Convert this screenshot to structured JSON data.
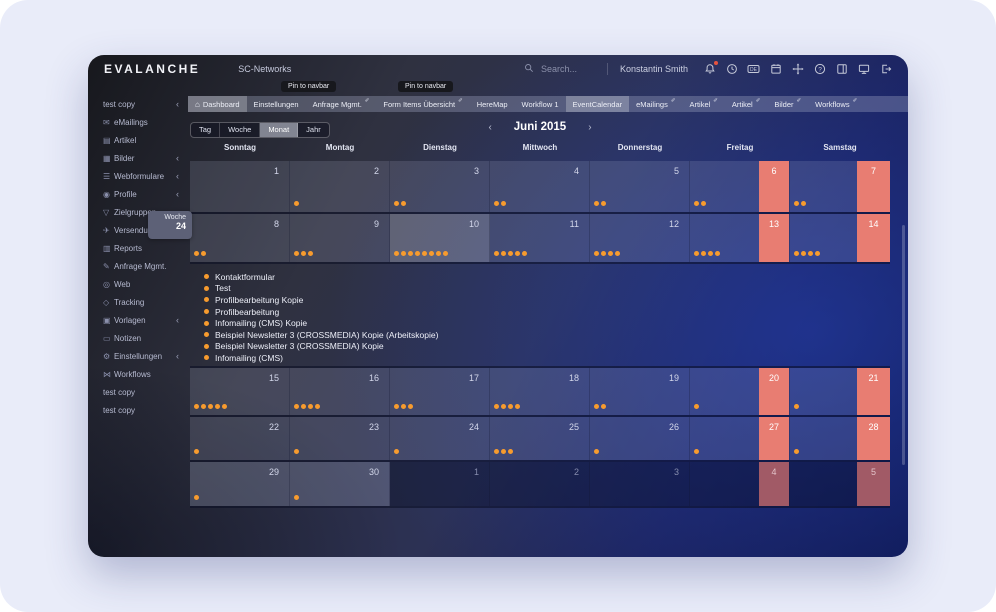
{
  "topbar": {
    "logo": "EVALANCHE",
    "organization": "SC-Networks",
    "search_placeholder": "Search...",
    "user_name": "Konstantin Smith",
    "language": "DE",
    "icons": [
      {
        "name": "bell",
        "badge": true
      },
      {
        "name": "history"
      },
      {
        "name": "language-de",
        "text": "DE"
      },
      {
        "name": "calendar"
      },
      {
        "name": "move"
      },
      {
        "name": "help"
      },
      {
        "name": "layout"
      },
      {
        "name": "monitor"
      },
      {
        "name": "logout"
      }
    ]
  },
  "sidebar": {
    "items": [
      {
        "label": "test copy",
        "collapse": true
      },
      {
        "label": "eMailings",
        "icon": "mail"
      },
      {
        "label": "Artikel",
        "icon": "article"
      },
      {
        "label": "Bilder",
        "icon": "images",
        "collapse": true
      },
      {
        "label": "Webformulare",
        "icon": "webform",
        "collapse": true
      },
      {
        "label": "Profile",
        "icon": "profile",
        "collapse": true
      },
      {
        "label": "Zielgruppen",
        "icon": "target-groups"
      },
      {
        "label": "Versendungen",
        "icon": "send",
        "collapse": true
      },
      {
        "label": "Reports",
        "icon": "reports"
      },
      {
        "label": "Anfrage Mgmt.",
        "icon": "requests"
      },
      {
        "label": "Web",
        "icon": "web"
      },
      {
        "label": "Tracking",
        "icon": "tracking"
      },
      {
        "label": "Vorlagen",
        "icon": "templates",
        "collapse": true
      },
      {
        "label": "Notizen",
        "icon": "notes"
      },
      {
        "label": "Einstellungen",
        "icon": "settings",
        "collapse": true
      },
      {
        "label": "Workflows",
        "icon": "workflows"
      },
      {
        "label": "test copy"
      },
      {
        "label": "test copy"
      }
    ]
  },
  "navbar": {
    "pin_tooltip": "Pin to navbar",
    "tabs": [
      {
        "label": "Dashboard",
        "icon": "home",
        "highlighted": true
      },
      {
        "label": "Einstellungen"
      },
      {
        "label": "Anfrage Mgmt.",
        "pinned": true
      },
      {
        "label": "Form Items Übersicht",
        "pinned": true
      },
      {
        "label": "HereMap"
      },
      {
        "label": "Workflow 1"
      },
      {
        "label": "EventCalendar",
        "highlighted": true
      },
      {
        "label": "eMailings",
        "pinned": true
      },
      {
        "label": "Artikel",
        "pinned": true
      },
      {
        "label": "Artikel",
        "pinned": true
      },
      {
        "label": "Bilder",
        "pinned": true
      },
      {
        "label": "Workflows",
        "pinned": true
      }
    ]
  },
  "calendar": {
    "views": [
      "Tag",
      "Woche",
      "Monat",
      "Jahr"
    ],
    "active_view": "Monat",
    "title": "Juni 2015",
    "prev_arrow": "‹",
    "next_arrow": "›",
    "day_headers": [
      "Sonntag",
      "Montag",
      "Dienstag",
      "Mittwoch",
      "Donnerstag",
      "Freitag",
      "Samstag"
    ],
    "week_badge": {
      "label": "Woche",
      "number": "24"
    },
    "weeks": [
      {
        "days": [
          {
            "num": "1",
            "dots": 0
          },
          {
            "num": "2",
            "dots": 1
          },
          {
            "num": "3",
            "dots": 2
          },
          {
            "num": "4",
            "dots": 2
          },
          {
            "num": "5",
            "dots": 2
          },
          {
            "num": "6",
            "dots": 2
          },
          {
            "num": "7",
            "dots": 2
          }
        ]
      },
      {
        "expanded": true,
        "days": [
          {
            "num": "8",
            "dots": 2
          },
          {
            "num": "9",
            "dots": 3
          },
          {
            "num": "10",
            "dots": 8,
            "selected": true
          },
          {
            "num": "11",
            "dots": 5
          },
          {
            "num": "12",
            "dots": 4
          },
          {
            "num": "13",
            "dots": 4
          },
          {
            "num": "14",
            "dots": 4
          }
        ]
      },
      {
        "days": [
          {
            "num": "15",
            "dots": 5
          },
          {
            "num": "16",
            "dots": 4
          },
          {
            "num": "17",
            "dots": 3
          },
          {
            "num": "18",
            "dots": 4
          },
          {
            "num": "19",
            "dots": 2
          },
          {
            "num": "20",
            "dots": 1
          },
          {
            "num": "21",
            "dots": 1
          }
        ]
      },
      {
        "days": [
          {
            "num": "22",
            "dots": 1
          },
          {
            "num": "23",
            "dots": 1
          },
          {
            "num": "24",
            "dots": 1
          },
          {
            "num": "25",
            "dots": 3
          },
          {
            "num": "26",
            "dots": 1
          },
          {
            "num": "27",
            "dots": 1
          },
          {
            "num": "28",
            "dots": 1
          }
        ]
      },
      {
        "days": [
          {
            "num": "29",
            "dots": 1
          },
          {
            "num": "30",
            "dots": 1
          },
          {
            "num": "1",
            "dots": 0,
            "other_month": true
          },
          {
            "num": "2",
            "dots": 0,
            "other_month": true
          },
          {
            "num": "3",
            "dots": 0,
            "other_month": true
          },
          {
            "num": "4",
            "dots": 0,
            "other_month": true
          },
          {
            "num": "5",
            "dots": 0,
            "other_month": true
          }
        ]
      }
    ],
    "expanded_events": [
      "Kontaktformular",
      "Test",
      "Profilbearbeitung Kopie",
      "Profilbearbeitung",
      "Infomailing (CMS) Kopie",
      "Beispiel Newsletter 3 (CROSSMEDIA) Kopie (Arbeitskopie)",
      "Beispiel Newsletter 3 (CROSSMEDIA) Kopie",
      "Infomailing (CMS)"
    ]
  },
  "colors": {
    "weekend_red": "#e87d72",
    "weekend_red_muted": "#a15a66",
    "event_dot_orange": "#f79b2e",
    "notification_red": "#e5533f"
  }
}
